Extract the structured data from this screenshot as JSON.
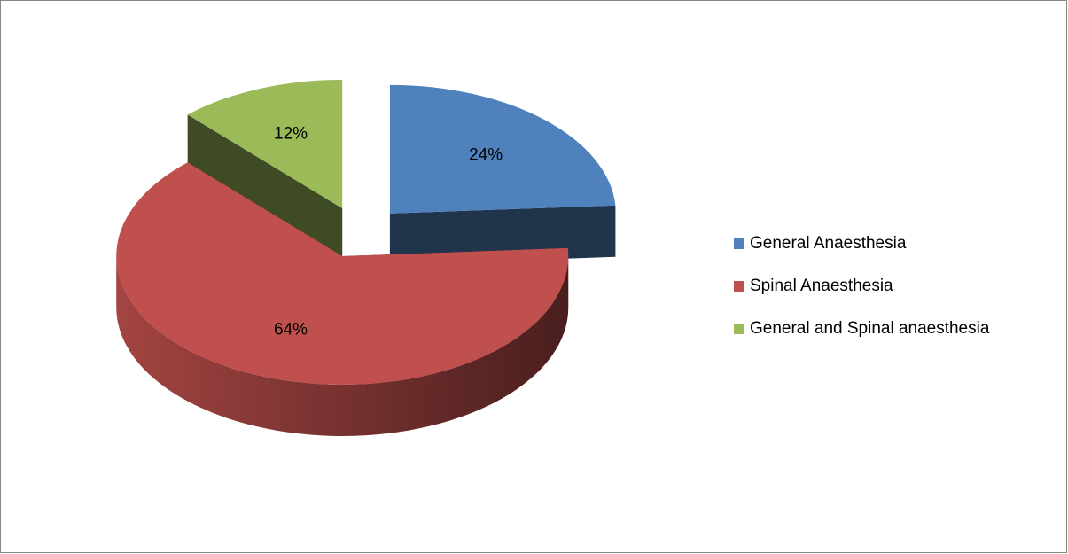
{
  "chart_data": {
    "type": "pie3d",
    "categories": [
      "General Anaesthesia",
      "Spinal Anaesthesia",
      "General and Spinal anaesthesia"
    ],
    "values": [
      24,
      64,
      12
    ],
    "value_labels": [
      "24%",
      "64%",
      "12%"
    ],
    "colors": [
      "#4f81bd",
      "#c0504d",
      "#9bbb59"
    ],
    "legend": "right"
  }
}
